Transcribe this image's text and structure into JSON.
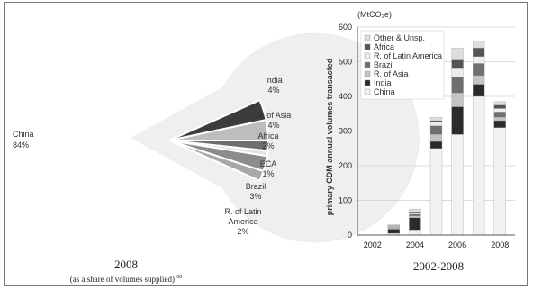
{
  "chart_data": [
    {
      "type": "pie",
      "title": "2008",
      "subtitle": "(as a share of volumes supplied)",
      "subtitle_footnote": "68",
      "slices": [
        {
          "name": "China",
          "value": 84,
          "label": "84%",
          "color": "#efefef"
        },
        {
          "name": "India",
          "value": 4,
          "label": "4%",
          "color": "#3c3c3c"
        },
        {
          "name": "R. of Asia",
          "value": 4,
          "label": "4%",
          "color": "#bdbdbd"
        },
        {
          "name": "Africa",
          "value": 2,
          "label": "2%",
          "color": "#6e6e6e"
        },
        {
          "name": "ECA",
          "value": 1,
          "label": "1%",
          "color": "#e2e2e2"
        },
        {
          "name": "Brazil",
          "value": 3,
          "label": "3%",
          "color": "#8c8c8c"
        },
        {
          "name": "R. of Latin America",
          "label_lines": [
            "R. of Latin",
            "America"
          ],
          "value": 2,
          "label": "2%",
          "color": "#a8a8a8"
        }
      ]
    },
    {
      "type": "bar",
      "stacked": true,
      "title": "2002-2008",
      "unit_label": "(MtCO₂e)",
      "ylabel": "primary CDM annual volumes transacted",
      "ylim": [
        0,
        600
      ],
      "yticks": [
        "0",
        "100",
        "200",
        "300",
        "400",
        "500",
        "600"
      ],
      "grid": true,
      "legend_position": "top-left",
      "categories": [
        "2002",
        "2003",
        "2004",
        "2005",
        "2006",
        "2007",
        "2008"
      ],
      "xtick_labels": [
        "2002",
        "2004",
        "2006",
        "2008"
      ],
      "series": [
        {
          "name": "China",
          "color": "#f2f2f2",
          "values": [
            0,
            5,
            15,
            250,
            290,
            400,
            310
          ]
        },
        {
          "name": "India",
          "color": "#2b2b2b",
          "values": [
            0,
            12,
            35,
            20,
            80,
            35,
            20
          ]
        },
        {
          "name": "R. of Asia",
          "color": "#c4c4c4",
          "values": [
            0,
            3,
            5,
            20,
            40,
            25,
            10
          ]
        },
        {
          "name": "Brazil",
          "color": "#6f6f6f",
          "values": [
            0,
            2,
            5,
            25,
            45,
            35,
            15
          ]
        },
        {
          "name": "R. of Latin America",
          "color": "#ededed",
          "values": [
            0,
            3,
            4,
            10,
            25,
            20,
            10
          ]
        },
        {
          "name": "Africa",
          "color": "#545454",
          "values": [
            0,
            2,
            3,
            5,
            25,
            25,
            10
          ]
        },
        {
          "name": "Other & Unsp.",
          "color": "#dddddd",
          "values": [
            0,
            3,
            8,
            10,
            35,
            20,
            10
          ]
        }
      ]
    }
  ]
}
